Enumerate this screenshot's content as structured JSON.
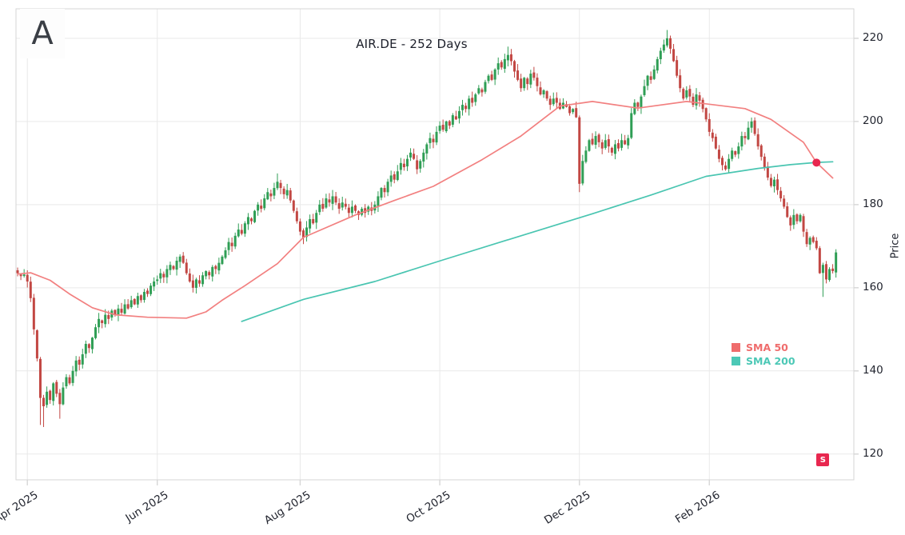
{
  "logo": {
    "letter": "A"
  },
  "chart_data": {
    "type": "candlestick",
    "title": "AIR.DE - 252 Days",
    "ylabel": "Price",
    "grid": true,
    "legend_position": "right-middle",
    "y_ticks": [
      120,
      140,
      160,
      180,
      200,
      220
    ],
    "y_range": [
      113.8,
      227.1
    ],
    "x_count": 252,
    "x_ticks": [
      {
        "index": 3,
        "label": "Apr 2025"
      },
      {
        "index": 43,
        "label": "Jun 2025"
      },
      {
        "index": 87,
        "label": "Aug 2025"
      },
      {
        "index": 130,
        "label": "Oct 2025"
      },
      {
        "index": 173,
        "label": "Dec 2025"
      },
      {
        "index": 213,
        "label": "Feb 2026"
      }
    ],
    "open_first": 164.2,
    "close": [
      163.5,
      162.8,
      163.2,
      161.5,
      157.5,
      150.0,
      143.0,
      133.5,
      131.5,
      135.0,
      133.0,
      137.0,
      134.5,
      132.0,
      136.0,
      138.5,
      137.0,
      140.0,
      142.5,
      141.5,
      144.0,
      146.5,
      145.5,
      148.0,
      150.5,
      152.5,
      151.5,
      153.5,
      152.5,
      154.5,
      153.5,
      155.0,
      154.0,
      156.0,
      155.0,
      157.0,
      156.0,
      158.0,
      157.0,
      159.0,
      158.5,
      160.5,
      161.5,
      162.0,
      163.5,
      162.5,
      164.5,
      165.5,
      164.5,
      166.5,
      167.5,
      166.0,
      163.5,
      161.5,
      160.0,
      162.0,
      161.0,
      163.0,
      164.0,
      163.0,
      165.0,
      164.5,
      166.0,
      167.5,
      169.0,
      171.0,
      170.0,
      172.5,
      174.0,
      173.0,
      175.5,
      177.0,
      176.0,
      178.5,
      180.0,
      179.0,
      181.5,
      183.0,
      182.0,
      184.0,
      185.5,
      184.0,
      182.5,
      183.5,
      181.0,
      178.5,
      176.0,
      173.5,
      172.0,
      174.5,
      176.5,
      175.5,
      178.0,
      180.0,
      179.0,
      181.5,
      180.5,
      182.0,
      180.5,
      179.0,
      180.5,
      179.5,
      178.0,
      179.5,
      178.5,
      177.5,
      179.0,
      178.0,
      179.5,
      178.5,
      180.0,
      182.0,
      184.0,
      183.0,
      185.5,
      187.0,
      186.0,
      188.0,
      190.0,
      189.0,
      191.0,
      192.5,
      191.0,
      188.5,
      190.5,
      192.5,
      194.5,
      196.0,
      195.0,
      197.5,
      199.0,
      198.0,
      200.0,
      199.0,
      201.5,
      200.5,
      202.5,
      204.0,
      203.0,
      205.5,
      204.5,
      206.5,
      208.0,
      207.0,
      209.5,
      211.0,
      210.0,
      212.5,
      214.0,
      213.0,
      215.0,
      216.0,
      214.5,
      212.0,
      210.0,
      208.0,
      210.5,
      209.0,
      211.5,
      210.5,
      208.5,
      206.5,
      207.5,
      205.5,
      204.0,
      205.5,
      204.5,
      203.0,
      204.5,
      203.5,
      202.0,
      203.0,
      201.0,
      185.0,
      190.5,
      193.0,
      195.5,
      194.5,
      196.5,
      195.0,
      193.5,
      195.5,
      194.0,
      192.5,
      194.5,
      193.5,
      195.5,
      194.5,
      196.0,
      202.0,
      204.5,
      203.5,
      206.0,
      208.5,
      211.0,
      210.0,
      212.5,
      215.0,
      217.0,
      218.5,
      220.0,
      217.5,
      214.5,
      211.0,
      208.0,
      205.5,
      207.5,
      206.0,
      204.0,
      206.5,
      205.0,
      203.0,
      200.5,
      197.5,
      196.0,
      193.5,
      191.0,
      189.5,
      188.5,
      191.0,
      193.0,
      192.0,
      194.0,
      196.5,
      196.0,
      198.5,
      200.0,
      197.0,
      194.0,
      191.5,
      189.0,
      186.5,
      184.5,
      186.0,
      183.5,
      181.5,
      179.5,
      177.0,
      175.0,
      177.5,
      176.0,
      177.5,
      173.5,
      170.5,
      172.0,
      171.0,
      169.5,
      163.5,
      165.5,
      162.0,
      164.5,
      164.0,
      168.5
    ],
    "low_overrides": {
      "7": 127.0,
      "8": 126.5,
      "13": 128.5,
      "173": 183.0,
      "248": 157.8
    },
    "high_overrides": {
      "80": 187.5,
      "151": 218.0,
      "200": 222.0
    },
    "series": [
      {
        "name": "SMA 50",
        "color": "#f28080",
        "anchors": [
          [
            0,
            163.3
          ],
          [
            4,
            163.6
          ],
          [
            10,
            161.8
          ],
          [
            16,
            158.5
          ],
          [
            23,
            155.2
          ],
          [
            30,
            153.5
          ],
          [
            40,
            152.9
          ],
          [
            52,
            152.7
          ],
          [
            58,
            154.2
          ],
          [
            63,
            157.0
          ],
          [
            70,
            160.5
          ],
          [
            80,
            165.8
          ],
          [
            88,
            172.1
          ],
          [
            104,
            177.5
          ],
          [
            116,
            181.0
          ],
          [
            128,
            184.4
          ],
          [
            143,
            190.8
          ],
          [
            155,
            196.5
          ],
          [
            167,
            203.7
          ],
          [
            177,
            204.8
          ],
          [
            191,
            203.2
          ],
          [
            206,
            204.8
          ],
          [
            224,
            203.1
          ],
          [
            232,
            200.5
          ],
          [
            242,
            195.0
          ],
          [
            246,
            190.1
          ],
          [
            251,
            186.4
          ]
        ]
      },
      {
        "name": "SMA 200",
        "color": "#49c5b1",
        "anchors": [
          [
            69,
            151.9
          ],
          [
            88,
            157.2
          ],
          [
            110,
            161.5
          ],
          [
            131,
            166.7
          ],
          [
            150,
            171.3
          ],
          [
            167,
            175.4
          ],
          [
            177,
            177.8
          ],
          [
            195,
            182.3
          ],
          [
            212,
            186.8
          ],
          [
            228,
            188.7
          ],
          [
            238,
            189.6
          ],
          [
            246,
            190.15
          ],
          [
            251,
            190.3
          ]
        ]
      }
    ],
    "legend": [
      {
        "label": "SMA 50",
        "color": "#ef6c6c"
      },
      {
        "label": "SMA 200",
        "color": "#4cc8b6"
      }
    ],
    "colors": {
      "up": "#2f9e55",
      "down": "#c24743",
      "grid": "#e9e9e9",
      "axis": "#d6d6d6",
      "text": "#22252f"
    },
    "markers": {
      "cross_dot": {
        "index": 246,
        "price": 190.1,
        "color": "#e8274f"
      },
      "signal": {
        "index": 248,
        "price": 118.6,
        "label": "S",
        "bg": "#e8274f",
        "fg": "#ffffff"
      }
    }
  }
}
